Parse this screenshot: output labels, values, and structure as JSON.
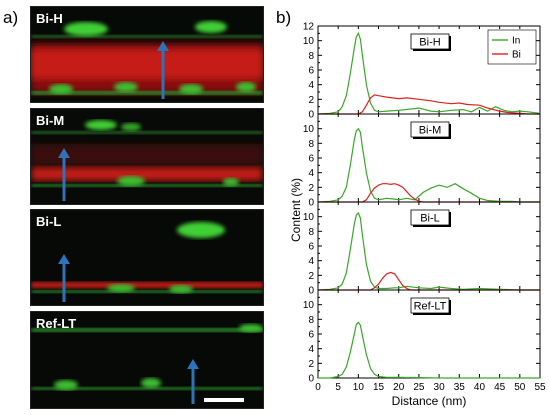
{
  "panel_a_label": "a)",
  "panel_b_label": "b)",
  "micrographs": [
    {
      "label": "Bi-H"
    },
    {
      "label": "Bi-M"
    },
    {
      "label": "Bi-L"
    },
    {
      "label": "Ref-LT"
    }
  ],
  "colors": {
    "In": "#3aa62a",
    "Bi": "#e02020",
    "arrow": "#2e73b8",
    "scalebar": "#ffffff"
  },
  "chart_data": {
    "type": "line",
    "xlabel": "Distance (nm)",
    "ylabel": "Content (%)",
    "xlim": [
      0,
      55
    ],
    "x_ticks": [
      0,
      5,
      10,
      15,
      20,
      25,
      30,
      35,
      40,
      45,
      50,
      55
    ],
    "legend_position": "top-right",
    "legend": [
      "In",
      "Bi"
    ],
    "top_yaxis_label": "12",
    "panels": [
      {
        "label": "Bi-H",
        "ylim": [
          0,
          12
        ],
        "y_ticks": [
          "0",
          "2",
          "4",
          "6",
          "8",
          "10"
        ],
        "series": [
          {
            "name": "In",
            "x": [
              0,
              3,
              5,
              6,
              7,
              8,
              9,
              9.5,
              10,
              10.5,
              11,
              12,
              13,
              14,
              15,
              17,
              20,
              25,
              28,
              30,
              33,
              36,
              38,
              40,
              42,
              44,
              46,
              48,
              50,
              52,
              55
            ],
            "y": [
              0,
              0.1,
              0.3,
              1.0,
              2.5,
              5.5,
              9.0,
              10.5,
              11.0,
              10.2,
              8.0,
              4.0,
              1.5,
              0.5,
              0.3,
              0.4,
              0.5,
              0.8,
              0.4,
              0.3,
              0.5,
              0.6,
              0.3,
              0.9,
              0.4,
              1.0,
              0.5,
              0.3,
              0.4,
              0.3,
              0.1
            ]
          },
          {
            "name": "Bi",
            "x": [
              0,
              10,
              11,
              12,
              13,
              14,
              15,
              17,
              20,
              22,
              25,
              28,
              30,
              33,
              35,
              37,
              40,
              42,
              45,
              47,
              50,
              52,
              55
            ],
            "y": [
              0,
              0,
              0.3,
              1.2,
              2.2,
              2.6,
              2.5,
              2.3,
              2.1,
              2.2,
              2.0,
              1.8,
              1.6,
              1.4,
              1.5,
              1.3,
              1.2,
              0.8,
              0.4,
              0.2,
              0.1,
              0,
              0
            ]
          }
        ]
      },
      {
        "label": "Bi-M",
        "ylim": [
          0,
          12
        ],
        "y_ticks": [
          "0",
          "2",
          "4",
          "6",
          "8",
          "10"
        ],
        "series": [
          {
            "name": "In",
            "x": [
              0,
              3,
              5,
              6,
              7,
              8,
              9,
              9.5,
              10,
              10.5,
              11,
              12,
              13,
              14,
              15,
              17,
              19,
              20,
              22,
              24,
              26,
              28,
              30,
              32,
              34,
              36,
              38,
              40,
              42,
              45,
              48,
              50,
              55
            ],
            "y": [
              0,
              0.1,
              0.3,
              0.8,
              2.0,
              5.0,
              8.5,
              9.7,
              10.0,
              9.5,
              7.5,
              4.0,
              1.5,
              0.5,
              0.3,
              0.5,
              0.4,
              0.3,
              0.5,
              0.3,
              1.3,
              1.9,
              2.3,
              2.0,
              2.5,
              1.8,
              1.2,
              0.5,
              0.2,
              0.1,
              0.1,
              0,
              0
            ]
          },
          {
            "name": "Bi",
            "x": [
              0,
              11,
              12,
              13,
              14,
              15,
              16,
              17,
              18,
              19,
              20,
              21,
              22,
              23,
              24,
              25,
              26,
              28,
              30,
              55
            ],
            "y": [
              0,
              0,
              0.3,
              1.2,
              1.9,
              2.3,
              2.5,
              2.5,
              2.4,
              2.5,
              2.3,
              2.0,
              1.4,
              0.8,
              0.4,
              0.1,
              0,
              0,
              0,
              0
            ]
          }
        ]
      },
      {
        "label": "Bi-L",
        "ylim": [
          0,
          12
        ],
        "y_ticks": [
          "0",
          "2",
          "4",
          "6",
          "8",
          "10"
        ],
        "series": [
          {
            "name": "In",
            "x": [
              0,
              3,
              5,
              6,
              7,
              8,
              9,
              9.5,
              10,
              10.5,
              11,
              12,
              13,
              14,
              15,
              17,
              19,
              20,
              22,
              25,
              28,
              30,
              33,
              36,
              40,
              45,
              50,
              55
            ],
            "y": [
              0,
              0.1,
              0.3,
              0.8,
              2.3,
              5.5,
              9.0,
              10.2,
              10.5,
              9.8,
              7.5,
              3.5,
              1.2,
              0.4,
              0.2,
              0.2,
              0.3,
              0.3,
              0.5,
              0.3,
              0.2,
              0.4,
              0.2,
              0.1,
              0.2,
              0.1,
              0,
              0
            ]
          },
          {
            "name": "Bi",
            "x": [
              0,
              13,
              14,
              15,
              16,
              17,
              18,
              19,
              20,
              21,
              22,
              23,
              55
            ],
            "y": [
              0,
              0,
              0.3,
              0.8,
              1.6,
              2.2,
              2.4,
              2.2,
              1.4,
              0.6,
              0.2,
              0,
              0
            ]
          }
        ]
      },
      {
        "label": "Ref-LT",
        "ylim": [
          0,
          12
        ],
        "y_ticks": [
          "0",
          "2",
          "4",
          "6",
          "8",
          "10"
        ],
        "series": [
          {
            "name": "In",
            "x": [
              0,
              3,
              5,
              6,
              7,
              8,
              9,
              9.5,
              10,
              10.5,
              11,
              12,
              13,
              14,
              15,
              17,
              20,
              25,
              30,
              35,
              40,
              45,
              50,
              55
            ],
            "y": [
              0,
              0,
              0.2,
              0.5,
              1.5,
              3.5,
              6.0,
              7.3,
              7.6,
              7.2,
              5.8,
              3.2,
              1.3,
              0.5,
              0.2,
              0.1,
              0.1,
              0.05,
              0,
              0,
              0,
              0,
              0,
              0
            ]
          }
        ]
      }
    ]
  }
}
